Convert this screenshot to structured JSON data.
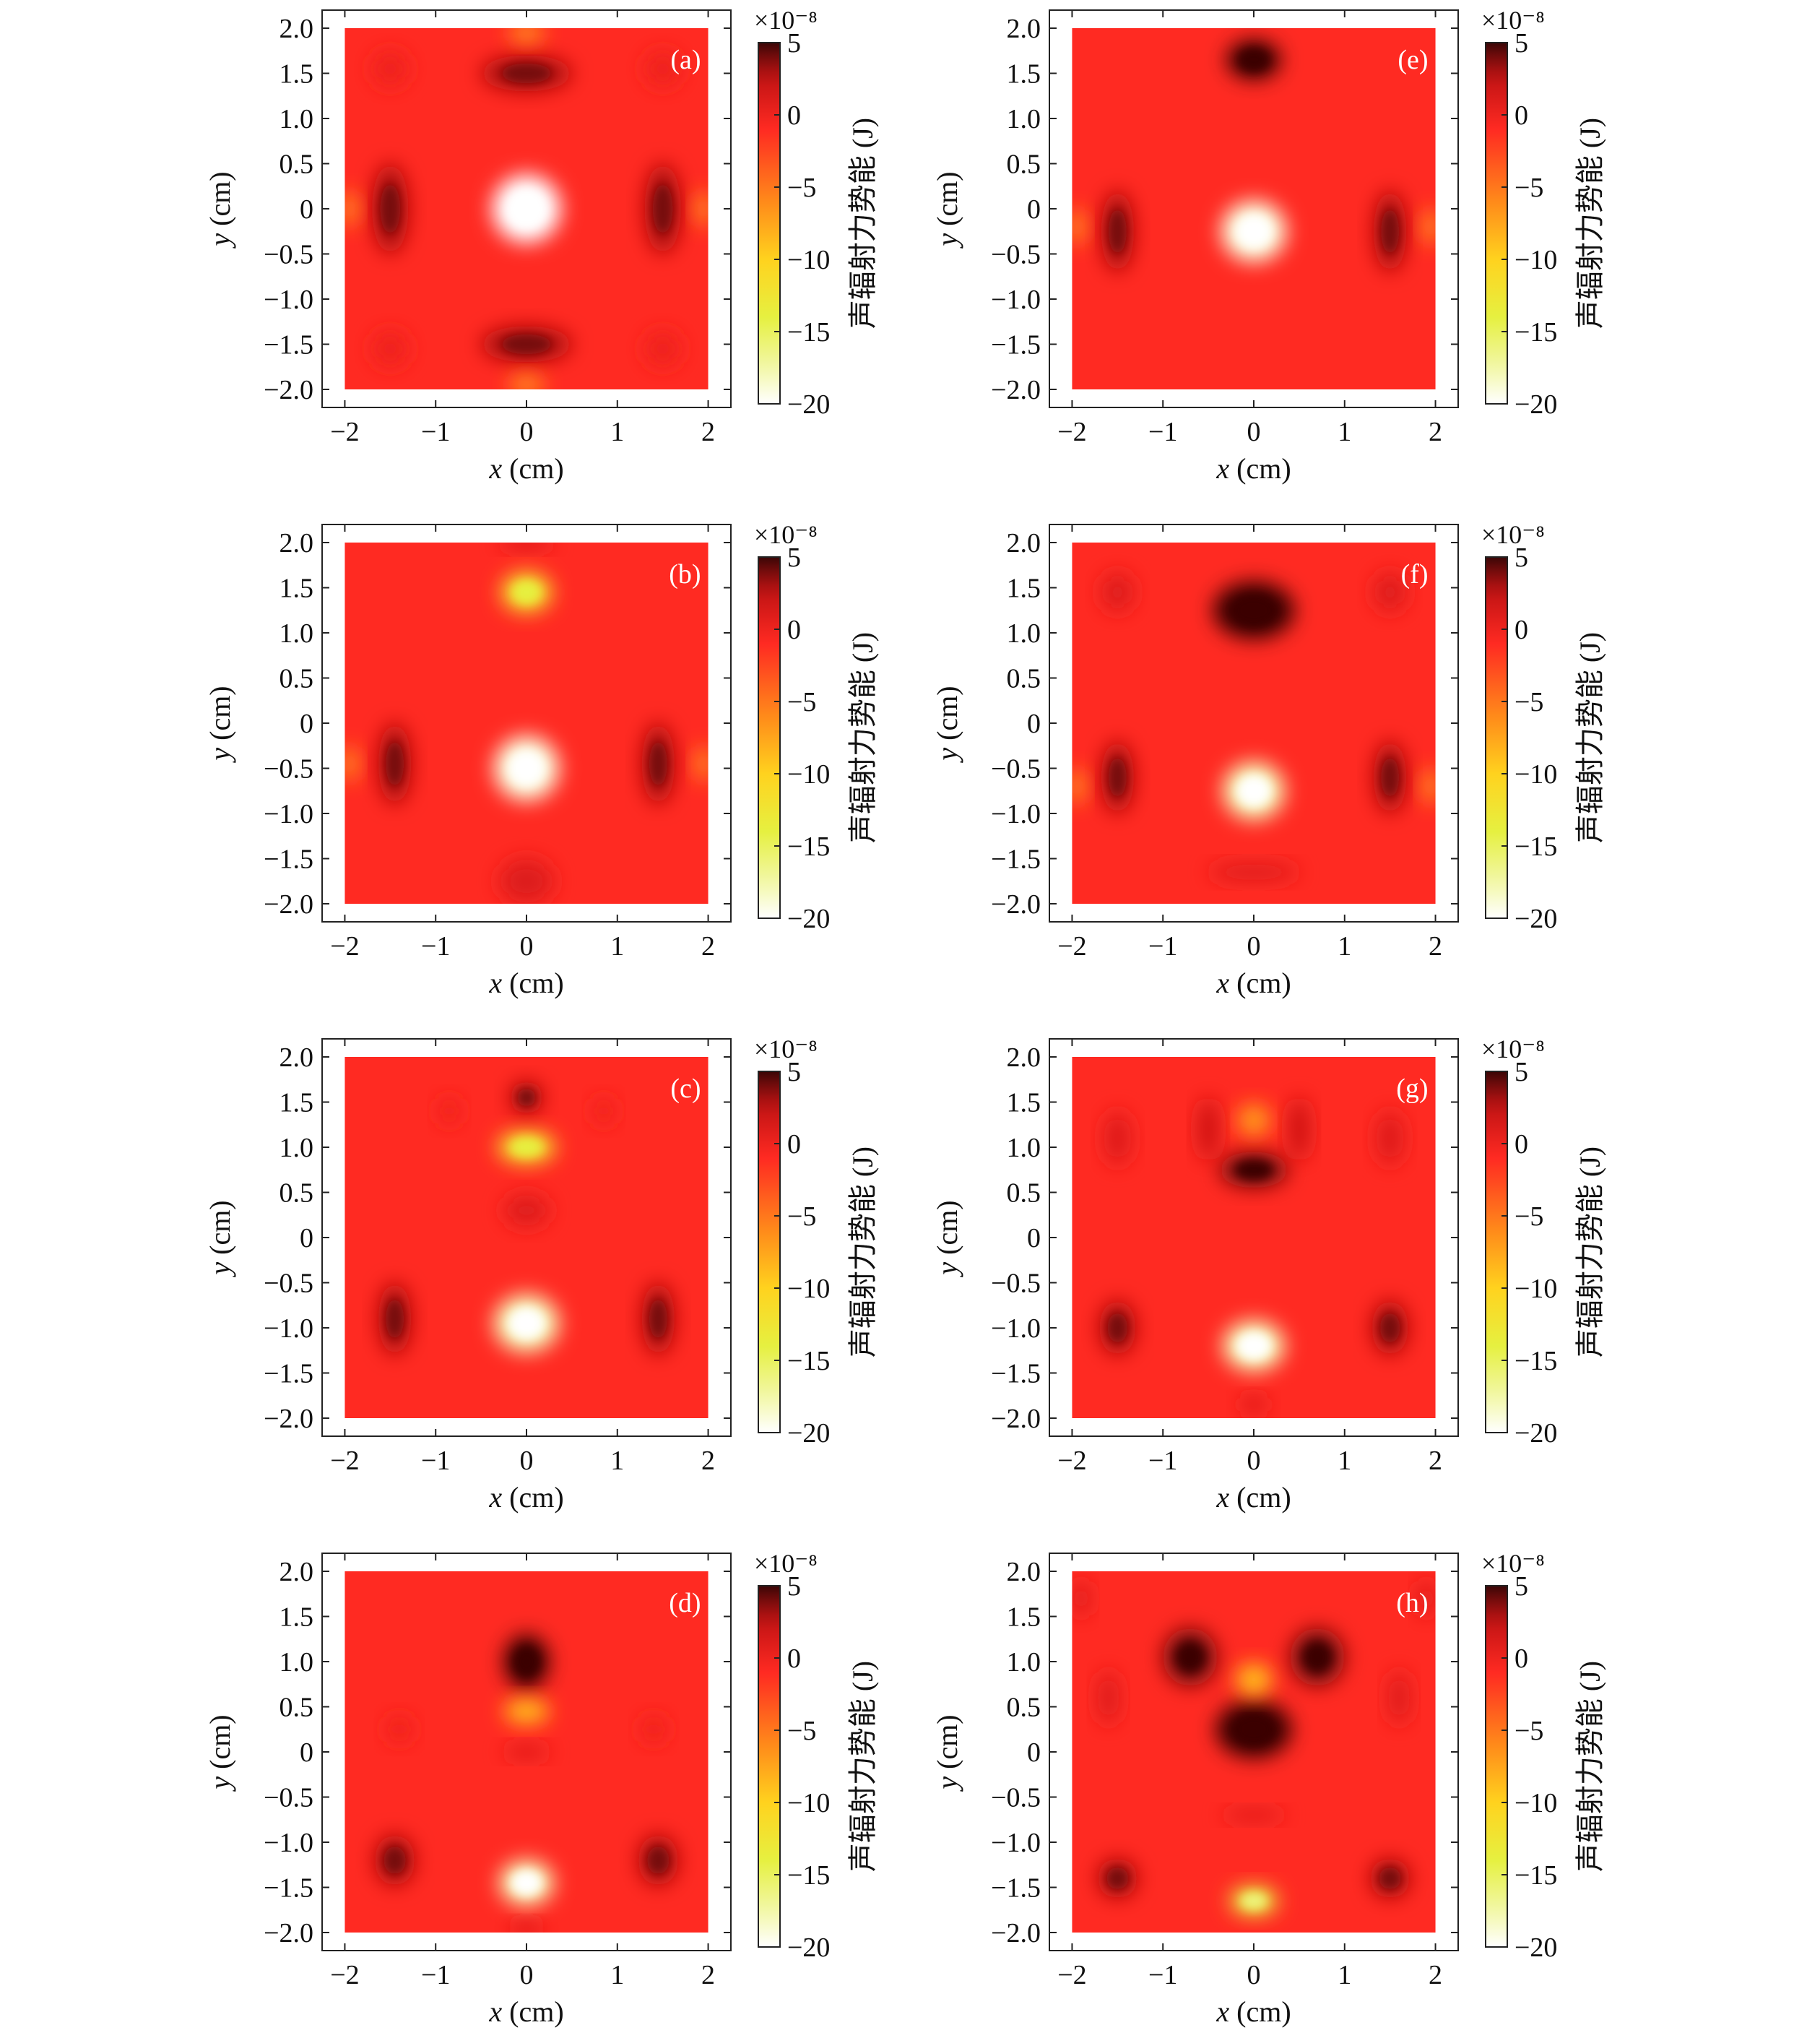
{
  "figure": {
    "colorbar": {
      "exponent_label": "×10⁻⁸",
      "label": "声辐射力势能 (J)",
      "ticks": [
        "5",
        "0",
        "−5",
        "−10",
        "−15",
        "−20"
      ],
      "tick_values": [
        5,
        0,
        -5,
        -10,
        -15,
        -20
      ],
      "range": [
        -20,
        5
      ],
      "colormap": [
        "#ffffff",
        "#f2f7a8",
        "#e6f040",
        "#ffd21e",
        "#ff8a1a",
        "#ff2a22",
        "#c41414",
        "#5c0909",
        "#3b0606"
      ],
      "background": "#ff2a22"
    }
  },
  "chart_data": [
    {
      "type": "heatmap",
      "panel_label": "(a)",
      "xlabel": "x (cm)",
      "ylabel": "y (cm)",
      "xlim": [
        -2.25,
        2.25
      ],
      "ylim": [
        -2.2,
        2.2
      ],
      "xticks": [
        "−2",
        "−1",
        "0",
        "1",
        "2"
      ],
      "yticks": [
        "2.0",
        "1.5",
        "1.0",
        "0.5",
        "0",
        "−0.5",
        "−1.0",
        "−1.5",
        "−2.0"
      ],
      "domain": [
        -2,
        2
      ],
      "features": [
        {
          "x": 0,
          "y": 0,
          "rx": 0.38,
          "ry": 0.38,
          "value": -20
        },
        {
          "x": 0,
          "y": 1.5,
          "rx": 0.5,
          "ry": 0.2,
          "value": 3
        },
        {
          "x": 0,
          "y": -1.5,
          "rx": 0.5,
          "ry": 0.2,
          "value": 3
        },
        {
          "x": -1.5,
          "y": 0,
          "rx": 0.2,
          "ry": 0.5,
          "value": 3
        },
        {
          "x": 1.5,
          "y": 0,
          "rx": 0.2,
          "ry": 0.5,
          "value": 3
        },
        {
          "x": -1.5,
          "y": 1.55,
          "rx": 0.2,
          "ry": 0.2,
          "value": 0
        },
        {
          "x": 1.5,
          "y": 1.55,
          "rx": 0.2,
          "ry": 0.2,
          "value": 0
        },
        {
          "x": -1.5,
          "y": -1.55,
          "rx": 0.2,
          "ry": 0.2,
          "value": 0
        },
        {
          "x": 1.5,
          "y": -1.55,
          "rx": 0.2,
          "ry": 0.2,
          "value": 0
        },
        {
          "x": 0,
          "y": 1.95,
          "rx": 0.2,
          "ry": 0.12,
          "value": -6
        },
        {
          "x": 0,
          "y": -1.95,
          "rx": 0.2,
          "ry": 0.12,
          "value": -6
        },
        {
          "x": -1.95,
          "y": 0,
          "rx": 0.1,
          "ry": 0.2,
          "value": -6
        },
        {
          "x": 1.95,
          "y": 0,
          "rx": 0.1,
          "ry": 0.2,
          "value": -6
        }
      ]
    },
    {
      "type": "heatmap",
      "panel_label": "(b)",
      "xlabel": "x (cm)",
      "ylabel": "y (cm)",
      "xlim": [
        -2.25,
        2.25
      ],
      "ylim": [
        -2.2,
        2.2
      ],
      "xticks": [
        "−2",
        "−1",
        "0",
        "1",
        "2"
      ],
      "yticks": [
        "2.0",
        "1.5",
        "1.0",
        "0.5",
        "0",
        "−0.5",
        "−1.0",
        "−1.5",
        "−2.0"
      ],
      "domain": [
        -2,
        2
      ],
      "features": [
        {
          "x": 0,
          "y": -0.5,
          "rx": 0.36,
          "ry": 0.36,
          "value": -19
        },
        {
          "x": 0,
          "y": 1.45,
          "rx": 0.28,
          "ry": 0.22,
          "value": -12
        },
        {
          "x": -1.45,
          "y": -0.45,
          "rx": 0.18,
          "ry": 0.45,
          "value": 3
        },
        {
          "x": 1.45,
          "y": -0.45,
          "rx": 0.18,
          "ry": 0.45,
          "value": 3
        },
        {
          "x": 0,
          "y": -1.75,
          "rx": 0.3,
          "ry": 0.25,
          "value": 1
        },
        {
          "x": 0,
          "y": 2.0,
          "rx": 0.3,
          "ry": 0.08,
          "value": 1
        },
        {
          "x": -1.95,
          "y": -0.45,
          "rx": 0.1,
          "ry": 0.2,
          "value": -6
        },
        {
          "x": 1.95,
          "y": -0.45,
          "rx": 0.1,
          "ry": 0.2,
          "value": -6
        }
      ]
    },
    {
      "type": "heatmap",
      "panel_label": "(c)",
      "xlabel": "x (cm)",
      "ylabel": "y (cm)",
      "xlim": [
        -2.25,
        2.25
      ],
      "ylim": [
        -2.2,
        2.2
      ],
      "xticks": [
        "−2",
        "−1",
        "0",
        "1",
        "2"
      ],
      "yticks": [
        "2.0",
        "1.5",
        "1.0",
        "0.5",
        "0",
        "−0.5",
        "−1.0",
        "−1.5",
        "−2.0"
      ],
      "domain": [
        -2,
        2
      ],
      "features": [
        {
          "x": 0,
          "y": -0.95,
          "rx": 0.36,
          "ry": 0.32,
          "value": -18
        },
        {
          "x": 0,
          "y": 1.0,
          "rx": 0.32,
          "ry": 0.18,
          "value": -12
        },
        {
          "x": 0,
          "y": 1.55,
          "rx": 0.18,
          "ry": 0.18,
          "value": 3
        },
        {
          "x": 0,
          "y": 0.3,
          "rx": 0.25,
          "ry": 0.18,
          "value": 1
        },
        {
          "x": -1.45,
          "y": -0.9,
          "rx": 0.18,
          "ry": 0.4,
          "value": 3
        },
        {
          "x": 1.45,
          "y": -0.9,
          "rx": 0.18,
          "ry": 0.4,
          "value": 3
        },
        {
          "x": -0.85,
          "y": 1.4,
          "rx": 0.12,
          "ry": 0.15,
          "value": 0
        },
        {
          "x": 0.85,
          "y": 1.4,
          "rx": 0.12,
          "ry": 0.15,
          "value": 0
        }
      ]
    },
    {
      "type": "heatmap",
      "panel_label": "(d)",
      "xlabel": "x (cm)",
      "ylabel": "y (cm)",
      "xlim": [
        -2.25,
        2.25
      ],
      "ylim": [
        -2.2,
        2.2
      ],
      "xticks": [
        "−2",
        "−1",
        "0",
        "1",
        "2"
      ],
      "yticks": [
        "2.0",
        "1.5",
        "1.0",
        "0.5",
        "0",
        "−0.5",
        "−1.0",
        "−1.5",
        "−2.0"
      ],
      "domain": [
        -2,
        2
      ],
      "features": [
        {
          "x": 0,
          "y": -1.45,
          "rx": 0.3,
          "ry": 0.25,
          "value": -18
        },
        {
          "x": 0,
          "y": 1.0,
          "rx": 0.25,
          "ry": 0.3,
          "value": 5
        },
        {
          "x": 0,
          "y": 0.45,
          "rx": 0.25,
          "ry": 0.14,
          "value": -9
        },
        {
          "x": 0,
          "y": 0,
          "rx": 0.25,
          "ry": 0.08,
          "value": 1
        },
        {
          "x": -1.45,
          "y": -1.2,
          "rx": 0.22,
          "ry": 0.28,
          "value": 3
        },
        {
          "x": 1.45,
          "y": -1.2,
          "rx": 0.22,
          "ry": 0.28,
          "value": 3
        },
        {
          "x": -1.4,
          "y": 0.25,
          "rx": 0.14,
          "ry": 0.15,
          "value": 0
        },
        {
          "x": 1.4,
          "y": 0.25,
          "rx": 0.14,
          "ry": 0.15,
          "value": 0
        },
        {
          "x": 0,
          "y": -1.95,
          "rx": 0.18,
          "ry": 0.08,
          "value": 1
        }
      ]
    },
    {
      "type": "heatmap",
      "panel_label": "(e)",
      "xlabel": "x (cm)",
      "ylabel": "y (cm)",
      "xlim": [
        -2.25,
        2.25
      ],
      "ylim": [
        -2.2,
        2.2
      ],
      "xticks": [
        "−2",
        "−1",
        "0",
        "1",
        "2"
      ],
      "yticks": [
        "2.0",
        "1.5",
        "1.0",
        "0.5",
        "0",
        "−0.5",
        "−1.0",
        "−1.5",
        "−2.0"
      ],
      "domain": [
        -2,
        2
      ],
      "features": [
        {
          "x": 0,
          "y": -0.25,
          "rx": 0.36,
          "ry": 0.34,
          "value": -19
        },
        {
          "x": 0,
          "y": 1.65,
          "rx": 0.3,
          "ry": 0.22,
          "value": 5
        },
        {
          "x": -1.5,
          "y": -0.25,
          "rx": 0.18,
          "ry": 0.45,
          "value": 3
        },
        {
          "x": 1.5,
          "y": -0.25,
          "rx": 0.18,
          "ry": 0.45,
          "value": 3
        },
        {
          "x": -1.95,
          "y": -0.2,
          "rx": 0.1,
          "ry": 0.2,
          "value": -6
        },
        {
          "x": 1.95,
          "y": -0.2,
          "rx": 0.1,
          "ry": 0.2,
          "value": -6
        }
      ]
    },
    {
      "type": "heatmap",
      "panel_label": "(f)",
      "xlabel": "x (cm)",
      "ylabel": "y (cm)",
      "xlim": [
        -2.25,
        2.25
      ],
      "ylim": [
        -2.2,
        2.2
      ],
      "xticks": [
        "−2",
        "−1",
        "0",
        "1",
        "2"
      ],
      "yticks": [
        "2.0",
        "1.5",
        "1.0",
        "0.5",
        "0",
        "−0.5",
        "−1.0",
        "−1.5",
        "−2.0"
      ],
      "domain": [
        -2,
        2
      ],
      "features": [
        {
          "x": 0,
          "y": -0.75,
          "rx": 0.34,
          "ry": 0.32,
          "value": -18
        },
        {
          "x": 0,
          "y": 1.25,
          "rx": 0.45,
          "ry": 0.32,
          "value": 5
        },
        {
          "x": -1.5,
          "y": -0.6,
          "rx": 0.18,
          "ry": 0.4,
          "value": 3
        },
        {
          "x": 1.5,
          "y": -0.6,
          "rx": 0.18,
          "ry": 0.4,
          "value": 3
        },
        {
          "x": -1.5,
          "y": 1.45,
          "rx": 0.18,
          "ry": 0.22,
          "value": 1
        },
        {
          "x": 1.5,
          "y": 1.45,
          "rx": 0.18,
          "ry": 0.22,
          "value": 1
        },
        {
          "x": 0,
          "y": -1.65,
          "rx": 0.5,
          "ry": 0.1,
          "value": 1
        },
        {
          "x": -1.95,
          "y": -0.7,
          "rx": 0.1,
          "ry": 0.2,
          "value": -6
        },
        {
          "x": 1.95,
          "y": -0.7,
          "rx": 0.1,
          "ry": 0.2,
          "value": -6
        }
      ]
    },
    {
      "type": "heatmap",
      "panel_label": "(g)",
      "xlabel": "x (cm)",
      "ylabel": "y (cm)",
      "xlim": [
        -2.25,
        2.25
      ],
      "ylim": [
        -2.2,
        2.2
      ],
      "xticks": [
        "−2",
        "−1",
        "0",
        "1",
        "2"
      ],
      "yticks": [
        "2.0",
        "1.5",
        "1.0",
        "0.5",
        "0",
        "−0.5",
        "−1.0",
        "−1.5",
        "−2.0"
      ],
      "domain": [
        -2,
        2
      ],
      "features": [
        {
          "x": 0,
          "y": -1.2,
          "rx": 0.34,
          "ry": 0.28,
          "value": -18
        },
        {
          "x": 0,
          "y": 0.75,
          "rx": 0.38,
          "ry": 0.2,
          "value": 4
        },
        {
          "x": 0,
          "y": 1.3,
          "rx": 0.18,
          "ry": 0.18,
          "value": -7
        },
        {
          "x": -0.5,
          "y": 1.2,
          "rx": 0.12,
          "ry": 0.35,
          "value": 2
        },
        {
          "x": 0.5,
          "y": 1.2,
          "rx": 0.12,
          "ry": 0.35,
          "value": 2
        },
        {
          "x": -1.5,
          "y": -1.0,
          "rx": 0.2,
          "ry": 0.3,
          "value": 3
        },
        {
          "x": 1.5,
          "y": -1.0,
          "rx": 0.2,
          "ry": 0.3,
          "value": 3
        },
        {
          "x": -1.5,
          "y": 1.1,
          "rx": 0.15,
          "ry": 0.3,
          "value": 1
        },
        {
          "x": 1.5,
          "y": 1.1,
          "rx": 0.15,
          "ry": 0.3,
          "value": 1
        },
        {
          "x": 0,
          "y": -1.85,
          "rx": 0.15,
          "ry": 0.1,
          "value": 1
        }
      ]
    },
    {
      "type": "heatmap",
      "panel_label": "(h)",
      "xlabel": "x (cm)",
      "ylabel": "y (cm)",
      "xlim": [
        -2.25,
        2.25
      ],
      "ylim": [
        -2.2,
        2.2
      ],
      "xticks": [
        "−2",
        "−1",
        "0",
        "1",
        "2"
      ],
      "yticks": [
        "2.0",
        "1.5",
        "1.0",
        "0.5",
        "0",
        "−0.5",
        "−1.0",
        "−1.5",
        "−2.0"
      ],
      "domain": [
        -2,
        2
      ],
      "features": [
        {
          "x": 0,
          "y": 0.25,
          "rx": 0.42,
          "ry": 0.32,
          "value": 5
        },
        {
          "x": 0,
          "y": 0.8,
          "rx": 0.2,
          "ry": 0.18,
          "value": -9
        },
        {
          "x": -0.7,
          "y": 1.05,
          "rx": 0.3,
          "ry": 0.32,
          "value": 4
        },
        {
          "x": 0.7,
          "y": 1.05,
          "rx": 0.3,
          "ry": 0.32,
          "value": 4
        },
        {
          "x": 0,
          "y": -1.65,
          "rx": 0.26,
          "ry": 0.16,
          "value": -14
        },
        {
          "x": 0,
          "y": -0.7,
          "rx": 0.35,
          "ry": 0.07,
          "value": 1
        },
        {
          "x": -1.5,
          "y": -1.4,
          "rx": 0.22,
          "ry": 0.22,
          "value": 3
        },
        {
          "x": 1.5,
          "y": -1.4,
          "rx": 0.22,
          "ry": 0.22,
          "value": 3
        },
        {
          "x": -1.6,
          "y": 0.6,
          "rx": 0.12,
          "ry": 0.3,
          "value": 1
        },
        {
          "x": 1.6,
          "y": 0.6,
          "rx": 0.12,
          "ry": 0.3,
          "value": 1
        },
        {
          "x": -1.9,
          "y": 1.7,
          "rx": 0.1,
          "ry": 0.2,
          "value": 1
        },
        {
          "x": 1.9,
          "y": 1.7,
          "rx": 0.1,
          "ry": 0.2,
          "value": 1
        }
      ]
    }
  ]
}
